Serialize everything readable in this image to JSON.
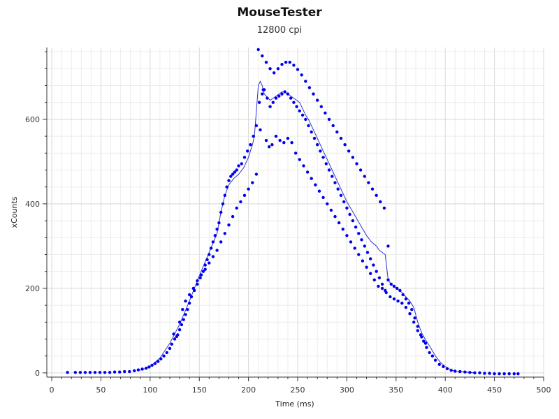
{
  "window": {
    "title": "MouseTester",
    "subtitle": "12800 cpi"
  },
  "chart_data": {
    "type": "scatter",
    "title": "MouseTester",
    "subtitle": "12800 cpi",
    "xlabel": "Time (ms)",
    "ylabel": "xCounts",
    "xlim": [
      -5,
      500
    ],
    "ylim": [
      -10,
      770
    ],
    "x_ticks": [
      0,
      50,
      100,
      150,
      200,
      250,
      300,
      350,
      400,
      450,
      500
    ],
    "y_ticks": [
      0,
      200,
      400,
      600
    ],
    "grid": true,
    "series": [
      {
        "kind": "points",
        "color": "#0000ee",
        "points": [
          [
            16,
            1
          ],
          [
            24,
            1
          ],
          [
            29,
            1
          ],
          [
            34,
            1
          ],
          [
            39,
            1
          ],
          [
            44,
            1
          ],
          [
            49,
            1
          ],
          [
            54,
            1
          ],
          [
            59,
            1
          ],
          [
            64,
            2
          ],
          [
            69,
            2
          ],
          [
            74,
            3
          ],
          [
            79,
            3
          ],
          [
            84,
            5
          ],
          [
            88,
            7
          ],
          [
            92,
            9
          ],
          [
            96,
            11
          ],
          [
            99,
            14
          ],
          [
            102,
            18
          ],
          [
            105,
            22
          ],
          [
            108,
            27
          ],
          [
            111,
            33
          ],
          [
            114,
            40
          ],
          [
            117,
            48
          ],
          [
            120,
            58
          ],
          [
            122,
            68
          ],
          [
            125,
            80
          ],
          [
            128,
            90
          ],
          [
            130,
            102
          ],
          [
            132,
            114
          ],
          [
            134,
            126
          ],
          [
            136,
            138
          ],
          [
            138,
            150
          ],
          [
            140,
            165
          ],
          [
            142,
            180
          ],
          [
            145,
            195
          ],
          [
            148,
            210
          ],
          [
            151,
            225
          ],
          [
            154,
            240
          ],
          [
            156,
            255
          ],
          [
            158,
            268
          ],
          [
            160,
            280
          ],
          [
            162,
            295
          ],
          [
            164,
            310
          ],
          [
            166,
            325
          ],
          [
            168,
            340
          ],
          [
            170,
            355
          ],
          [
            172,
            380
          ],
          [
            174,
            400
          ],
          [
            176,
            420
          ],
          [
            178,
            440
          ],
          [
            180,
            455
          ],
          [
            182,
            465
          ],
          [
            184,
            470
          ],
          [
            186,
            475
          ],
          [
            188,
            480
          ],
          [
            190,
            490
          ],
          [
            193,
            495
          ],
          [
            196,
            510
          ],
          [
            199,
            525
          ],
          [
            202,
            540
          ],
          [
            205,
            560
          ],
          [
            208,
            585
          ],
          [
            211,
            640
          ],
          [
            214,
            660
          ],
          [
            216,
            670
          ],
          [
            219,
            650
          ],
          [
            222,
            630
          ],
          [
            225,
            640
          ],
          [
            228,
            650
          ],
          [
            231,
            655
          ],
          [
            234,
            660
          ],
          [
            237,
            665
          ],
          [
            240,
            660
          ],
          [
            243,
            650
          ],
          [
            246,
            640
          ],
          [
            249,
            630
          ],
          [
            252,
            620
          ],
          [
            255,
            610
          ],
          [
            258,
            600
          ],
          [
            261,
            585
          ],
          [
            264,
            570
          ],
          [
            267,
            555
          ],
          [
            270,
            540
          ],
          [
            273,
            525
          ],
          [
            276,
            510
          ],
          [
            279,
            495
          ],
          [
            282,
            480
          ],
          [
            285,
            465
          ],
          [
            288,
            450
          ],
          [
            291,
            435
          ],
          [
            294,
            420
          ],
          [
            297,
            405
          ],
          [
            300,
            390
          ],
          [
            303,
            375
          ],
          [
            306,
            360
          ],
          [
            309,
            345
          ],
          [
            312,
            330
          ],
          [
            315,
            315
          ],
          [
            318,
            300
          ],
          [
            321,
            285
          ],
          [
            324,
            270
          ],
          [
            327,
            255
          ],
          [
            330,
            240
          ],
          [
            333,
            225
          ],
          [
            336,
            210
          ],
          [
            339,
            195
          ],
          [
            342,
            220
          ],
          [
            345,
            210
          ],
          [
            348,
            205
          ],
          [
            351,
            200
          ],
          [
            354,
            195
          ],
          [
            357,
            185
          ],
          [
            360,
            175
          ],
          [
            363,
            165
          ],
          [
            366,
            150
          ],
          [
            369,
            130
          ],
          [
            372,
            110
          ],
          [
            375,
            90
          ],
          [
            378,
            75
          ],
          [
            381,
            60
          ],
          [
            384,
            48
          ],
          [
            387,
            40
          ],
          [
            390,
            30
          ],
          [
            394,
            20
          ],
          [
            398,
            15
          ],
          [
            402,
            10
          ],
          [
            406,
            6
          ],
          [
            410,
            4
          ],
          [
            415,
            3
          ],
          [
            420,
            2
          ],
          [
            425,
            1
          ],
          [
            430,
            0
          ],
          [
            435,
            0
          ],
          [
            440,
            -1
          ],
          [
            445,
            -1
          ],
          [
            450,
            -2
          ],
          [
            455,
            -2
          ],
          [
            460,
            -2
          ],
          [
            465,
            -2
          ],
          [
            470,
            -2
          ],
          [
            474,
            -2
          ],
          [
            124,
            92
          ],
          [
            127,
            86
          ],
          [
            130,
            120
          ],
          [
            133,
            150
          ],
          [
            136,
            170
          ],
          [
            140,
            185
          ],
          [
            144,
            200
          ],
          [
            148,
            218
          ],
          [
            152,
            232
          ],
          [
            156,
            245
          ],
          [
            160,
            260
          ],
          [
            164,
            275
          ],
          [
            168,
            290
          ],
          [
            172,
            310
          ],
          [
            176,
            330
          ],
          [
            180,
            350
          ],
          [
            184,
            370
          ],
          [
            188,
            390
          ],
          [
            192,
            405
          ],
          [
            196,
            420
          ],
          [
            200,
            435
          ],
          [
            204,
            450
          ],
          [
            208,
            470
          ],
          [
            212,
            575
          ],
          [
            215,
            670
          ],
          [
            218,
            550
          ],
          [
            221,
            535
          ],
          [
            224,
            540
          ],
          [
            228,
            560
          ],
          [
            232,
            550
          ],
          [
            236,
            545
          ],
          [
            240,
            555
          ],
          [
            244,
            545
          ],
          [
            248,
            520
          ],
          [
            252,
            505
          ],
          [
            256,
            490
          ],
          [
            260,
            475
          ],
          [
            264,
            460
          ],
          [
            268,
            445
          ],
          [
            272,
            430
          ],
          [
            276,
            415
          ],
          [
            280,
            400
          ],
          [
            284,
            385
          ],
          [
            288,
            370
          ],
          [
            292,
            355
          ],
          [
            296,
            340
          ],
          [
            300,
            325
          ],
          [
            304,
            310
          ],
          [
            308,
            295
          ],
          [
            312,
            280
          ],
          [
            316,
            265
          ],
          [
            320,
            250
          ],
          [
            324,
            235
          ],
          [
            328,
            220
          ],
          [
            332,
            205
          ],
          [
            336,
            200
          ],
          [
            340,
            190
          ],
          [
            344,
            180
          ],
          [
            348,
            175
          ],
          [
            352,
            170
          ],
          [
            356,
            165
          ],
          [
            360,
            155
          ],
          [
            364,
            140
          ],
          [
            368,
            120
          ],
          [
            372,
            100
          ],
          [
            376,
            85
          ],
          [
            380,
            70
          ],
          [
            210,
            765
          ],
          [
            214,
            750
          ],
          [
            218,
            735
          ],
          [
            222,
            720
          ],
          [
            226,
            710
          ],
          [
            230,
            720
          ],
          [
            234,
            730
          ],
          [
            238,
            735
          ],
          [
            242,
            735
          ],
          [
            246,
            728
          ],
          [
            250,
            718
          ],
          [
            254,
            705
          ],
          [
            258,
            690
          ],
          [
            262,
            675
          ],
          [
            266,
            660
          ],
          [
            270,
            645
          ],
          [
            274,
            630
          ],
          [
            278,
            615
          ],
          [
            282,
            600
          ],
          [
            286,
            585
          ],
          [
            290,
            570
          ],
          [
            294,
            555
          ],
          [
            298,
            540
          ],
          [
            302,
            525
          ],
          [
            306,
            510
          ],
          [
            310,
            495
          ],
          [
            314,
            480
          ],
          [
            318,
            465
          ],
          [
            322,
            450
          ],
          [
            326,
            435
          ],
          [
            330,
            420
          ],
          [
            334,
            405
          ],
          [
            338,
            390
          ],
          [
            342,
            300
          ]
        ]
      },
      {
        "kind": "line",
        "color": "#3333cc",
        "points": [
          [
            90,
            6
          ],
          [
            100,
            15
          ],
          [
            110,
            35
          ],
          [
            120,
            70
          ],
          [
            130,
            115
          ],
          [
            140,
            170
          ],
          [
            150,
            230
          ],
          [
            160,
            285
          ],
          [
            168,
            330
          ],
          [
            172,
            380
          ],
          [
            176,
            420
          ],
          [
            180,
            445
          ],
          [
            185,
            460
          ],
          [
            190,
            470
          ],
          [
            195,
            485
          ],
          [
            200,
            510
          ],
          [
            204,
            540
          ],
          [
            206,
            560
          ],
          [
            208,
            620
          ],
          [
            210,
            680
          ],
          [
            212,
            690
          ],
          [
            214,
            680
          ],
          [
            216,
            660
          ],
          [
            218,
            655
          ],
          [
            220,
            650
          ],
          [
            222,
            645
          ],
          [
            225,
            650
          ],
          [
            228,
            655
          ],
          [
            231,
            660
          ],
          [
            234,
            665
          ],
          [
            237,
            664
          ],
          [
            240,
            660
          ],
          [
            243,
            655
          ],
          [
            246,
            650
          ],
          [
            249,
            645
          ],
          [
            252,
            640
          ],
          [
            255,
            625
          ],
          [
            258,
            610
          ],
          [
            261,
            600
          ],
          [
            264,
            585
          ],
          [
            268,
            565
          ],
          [
            272,
            545
          ],
          [
            276,
            525
          ],
          [
            280,
            505
          ],
          [
            285,
            480
          ],
          [
            290,
            455
          ],
          [
            295,
            430
          ],
          [
            300,
            405
          ],
          [
            305,
            385
          ],
          [
            310,
            365
          ],
          [
            315,
            345
          ],
          [
            320,
            325
          ],
          [
            325,
            310
          ],
          [
            330,
            300
          ],
          [
            333,
            290
          ],
          [
            336,
            285
          ],
          [
            339,
            280
          ],
          [
            342,
            220
          ],
          [
            345,
            210
          ],
          [
            348,
            205
          ],
          [
            352,
            198
          ],
          [
            356,
            190
          ],
          [
            360,
            180
          ],
          [
            364,
            170
          ],
          [
            368,
            155
          ],
          [
            372,
            120
          ],
          [
            376,
            95
          ],
          [
            380,
            78
          ],
          [
            385,
            60
          ],
          [
            390,
            40
          ],
          [
            395,
            25
          ],
          [
            400,
            15
          ],
          [
            405,
            8
          ],
          [
            410,
            4
          ],
          [
            420,
            2
          ],
          [
            430,
            0
          ]
        ]
      }
    ]
  }
}
